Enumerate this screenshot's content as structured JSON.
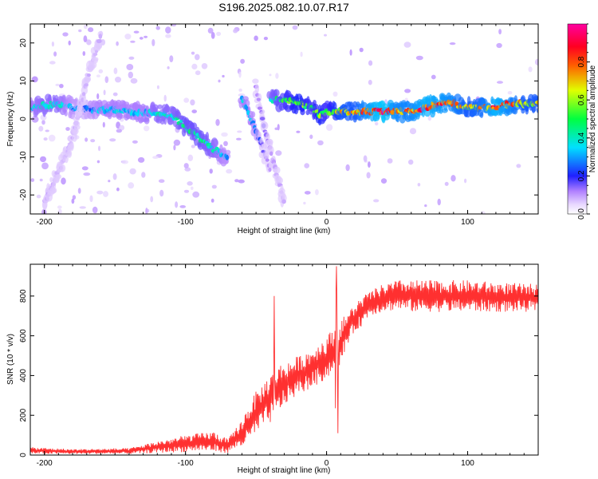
{
  "figure": {
    "title": "S196.2025.082.10.07.R17"
  },
  "chart_data": [
    {
      "type": "heatmap",
      "xlabel": "Height of straight line (km)",
      "ylabel": "Frequency (Hz)",
      "xlim": [
        -210,
        150
      ],
      "ylim": [
        -25,
        25
      ],
      "x_ticks": [
        "-200",
        "-100",
        "0",
        "100"
      ],
      "y_ticks": [
        "-20",
        "-10",
        "0",
        "10",
        "20"
      ],
      "colorbar": {
        "label": "Normalized spectral amplitude",
        "range": [
          0,
          1
        ],
        "ticks": [
          "0.0",
          "0.2",
          "0.4",
          "0.6",
          "0.8"
        ],
        "colormap": "rainbow: white-violet (0) → blue → cyan → green → yellow → red → magenta (1)"
      },
      "ridges": [
        {
          "name": "main-ridge",
          "x": [
            -210,
            -200,
            -190,
            -180,
            -170,
            -160,
            -150,
            -140,
            -130,
            -120,
            -110,
            -100,
            -90,
            -80,
            -70
          ],
          "y": [
            3,
            3.5,
            4,
            3,
            2.5,
            2.5,
            2.5,
            2,
            1.5,
            1.5,
            1,
            -2,
            -5,
            -8,
            -10
          ],
          "amp": [
            0.35,
            0.4,
            0.4,
            0.3,
            0.25,
            0.35,
            0.35,
            0.35,
            0.35,
            0.4,
            0.4,
            0.45,
            0.45,
            0.4,
            0.3
          ]
        },
        {
          "name": "left-diagonal-streak",
          "x": [
            -200,
            -190,
            -180,
            -170,
            -160
          ],
          "y": [
            -22,
            -14,
            -5,
            10,
            22
          ],
          "amp": [
            0.08,
            0.08,
            0.08,
            0.08,
            0.08
          ]
        },
        {
          "name": "mid-left-diagonal",
          "x": [
            -60,
            -55,
            -50,
            -45,
            -40
          ],
          "y": [
            5,
            1,
            -3,
            -8,
            -13
          ],
          "amp": [
            0.35,
            0.35,
            0.3,
            0.15,
            0.1
          ]
        },
        {
          "name": "mid-right-diagonal",
          "x": [
            -50,
            -45,
            -40,
            -35,
            -30
          ],
          "y": [
            8,
            -1,
            -8,
            -15,
            -22
          ],
          "amp": [
            0.12,
            0.15,
            0.12,
            0.1,
            0.08
          ]
        },
        {
          "name": "right-ridge",
          "x": [
            -40,
            -30,
            -20,
            -10,
            -5,
            0,
            10,
            20,
            30,
            40,
            50,
            60,
            70,
            80,
            90,
            100,
            110,
            120,
            130,
            140,
            150
          ],
          "y": [
            5,
            5,
            4,
            3,
            1,
            2,
            2,
            2,
            2,
            2,
            2,
            2,
            3,
            4,
            4,
            3,
            3,
            3,
            4,
            4,
            4
          ],
          "amp": [
            0.4,
            0.5,
            0.6,
            0.5,
            0.6,
            0.5,
            0.7,
            0.7,
            0.85,
            0.95,
            0.8,
            0.8,
            0.9,
            0.85,
            0.8,
            0.7,
            0.75,
            0.9,
            0.8,
            0.7,
            0.7
          ]
        }
      ]
    },
    {
      "type": "line",
      "xlabel": "Height of straight line (km)",
      "ylabel": "SNR (10 * v/v)",
      "xlim": [
        -210,
        150
      ],
      "ylim": [
        0,
        960
      ],
      "x_ticks": [
        "-200",
        "-100",
        "0",
        "100"
      ],
      "y_ticks": [
        "0",
        "200",
        "400",
        "600",
        "800"
      ],
      "color": "#ff3030",
      "envelope": {
        "x": [
          -210,
          -180,
          -140,
          -120,
          -100,
          -90,
          -80,
          -70,
          -65,
          -60,
          -55,
          -50,
          -45,
          -40,
          -35,
          -30,
          -25,
          -20,
          -15,
          -10,
          -5,
          0,
          5,
          7,
          8,
          10,
          15,
          20,
          25,
          30,
          40,
          50,
          60,
          80,
          100,
          120,
          150
        ],
        "lo": [
          5,
          5,
          5,
          10,
          15,
          20,
          15,
          10,
          30,
          40,
          60,
          100,
          140,
          160,
          200,
          250,
          280,
          300,
          320,
          340,
          360,
          380,
          420,
          120,
          350,
          460,
          560,
          620,
          650,
          700,
          720,
          730,
          720,
          720,
          720,
          720,
          720
        ],
        "hi": [
          40,
          30,
          35,
          70,
          100,
          110,
          120,
          80,
          130,
          180,
          260,
          320,
          360,
          420,
          450,
          470,
          480,
          500,
          520,
          540,
          570,
          600,
          640,
          950,
          700,
          680,
          720,
          760,
          800,
          820,
          860,
          880,
          880,
          880,
          880,
          870,
          860
        ]
      },
      "spikes": [
        {
          "x": -37,
          "y": 800
        },
        {
          "x": 7,
          "y": 950
        },
        {
          "x": 8,
          "y": 110
        }
      ]
    }
  ]
}
